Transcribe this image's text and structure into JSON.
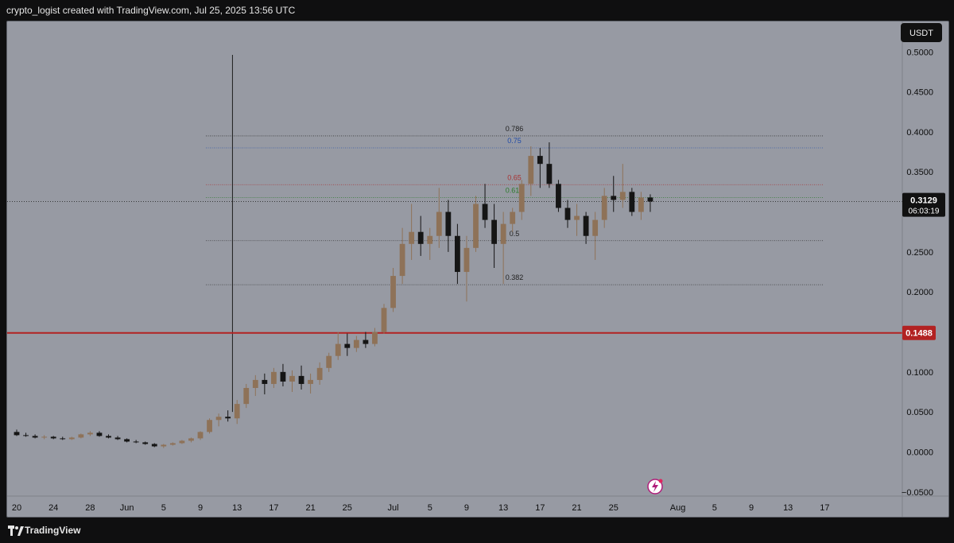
{
  "header": {
    "attribution": "crypto_logist created with TradingView.com, Jul 25, 2025 13:56 UTC"
  },
  "footer": {
    "brand": "TradingView"
  },
  "colors": {
    "background": "#979aa3",
    "bull": "#8e7258",
    "bear": "#151515",
    "support_line": "#b22222",
    "price_badge": "#111111",
    "fib_0_75": "#1f4aa8",
    "fib_0_65": "#a83232",
    "fib_0_618": "#2a7a2a"
  },
  "chart_data": {
    "type": "candlestick",
    "currency": "USDT",
    "ylim": [
      -0.05,
      0.5
    ],
    "y_ticks": [
      0.5,
      0.45,
      0.4,
      0.35,
      0.25,
      0.2,
      0.1,
      0.05,
      0.0,
      -0.05
    ],
    "y_tick_labels": [
      "0.5000",
      "0.4500",
      "0.4000",
      "0.3500",
      "0.2500",
      "0.2000",
      "0.1000",
      "0.0500",
      "0.0000",
      "−0.0500"
    ],
    "x_tick_labels": [
      "20",
      "24",
      "28",
      "Jun",
      "5",
      "9",
      "13",
      "17",
      "21",
      "25",
      "Jul",
      "5",
      "9",
      "13",
      "17",
      "21",
      "25",
      "Aug",
      "5",
      "9",
      "13",
      "17"
    ],
    "x_tick_day_index": [
      0,
      4,
      8,
      12,
      16,
      20,
      24,
      28,
      32,
      36,
      41,
      45,
      49,
      53,
      57,
      61,
      65,
      72,
      76,
      80,
      84,
      88
    ],
    "last_price": {
      "value": 0.3129,
      "label": "0.3129",
      "countdown": "06:03:19"
    },
    "support": {
      "value": 0.1488,
      "label": "0.1488"
    },
    "fib_levels": [
      {
        "ratio": "0.786",
        "price": 0.395
      },
      {
        "ratio": "0.75",
        "price": 0.38
      },
      {
        "ratio": "0.65",
        "price": 0.334
      },
      {
        "ratio": "0.618",
        "price": 0.318
      },
      {
        "ratio": "0.5",
        "price": 0.264
      },
      {
        "ratio": "0.382",
        "price": 0.209
      }
    ],
    "vertical_marker_day": 23.5,
    "candles": [
      [
        0.025,
        0.028,
        0.02,
        0.021
      ],
      [
        0.021,
        0.024,
        0.019,
        0.02
      ],
      [
        0.02,
        0.022,
        0.017,
        0.018
      ],
      [
        0.018,
        0.021,
        0.016,
        0.019
      ],
      [
        0.019,
        0.02,
        0.016,
        0.017
      ],
      [
        0.017,
        0.019,
        0.015,
        0.016
      ],
      [
        0.016,
        0.019,
        0.015,
        0.018
      ],
      [
        0.018,
        0.023,
        0.017,
        0.022
      ],
      [
        0.022,
        0.026,
        0.02,
        0.024
      ],
      [
        0.024,
        0.026,
        0.019,
        0.02
      ],
      [
        0.02,
        0.022,
        0.017,
        0.018
      ],
      [
        0.018,
        0.02,
        0.015,
        0.016
      ],
      [
        0.016,
        0.017,
        0.012,
        0.013
      ],
      [
        0.013,
        0.015,
        0.011,
        0.012
      ],
      [
        0.012,
        0.013,
        0.009,
        0.01
      ],
      [
        0.01,
        0.011,
        0.006,
        0.007
      ],
      [
        0.007,
        0.01,
        0.005,
        0.009
      ],
      [
        0.009,
        0.012,
        0.008,
        0.011
      ],
      [
        0.011,
        0.015,
        0.01,
        0.014
      ],
      [
        0.014,
        0.018,
        0.012,
        0.017
      ],
      [
        0.017,
        0.026,
        0.015,
        0.025
      ],
      [
        0.025,
        0.042,
        0.023,
        0.04
      ],
      [
        0.04,
        0.048,
        0.032,
        0.044
      ],
      [
        0.044,
        0.052,
        0.038,
        0.042
      ],
      [
        0.042,
        0.065,
        0.035,
        0.06
      ],
      [
        0.06,
        0.085,
        0.055,
        0.08
      ],
      [
        0.08,
        0.096,
        0.07,
        0.09
      ],
      [
        0.09,
        0.098,
        0.072,
        0.085
      ],
      [
        0.085,
        0.105,
        0.08,
        0.1
      ],
      [
        0.1,
        0.11,
        0.082,
        0.088
      ],
      [
        0.088,
        0.102,
        0.075,
        0.095
      ],
      [
        0.095,
        0.108,
        0.078,
        0.085
      ],
      [
        0.085,
        0.098,
        0.073,
        0.09
      ],
      [
        0.09,
        0.112,
        0.084,
        0.105
      ],
      [
        0.105,
        0.124,
        0.1,
        0.12
      ],
      [
        0.12,
        0.15,
        0.115,
        0.135
      ],
      [
        0.135,
        0.148,
        0.12,
        0.13
      ],
      [
        0.13,
        0.145,
        0.125,
        0.14
      ],
      [
        0.14,
        0.15,
        0.13,
        0.135
      ],
      [
        0.135,
        0.155,
        0.132,
        0.15
      ],
      [
        0.15,
        0.185,
        0.148,
        0.18
      ],
      [
        0.18,
        0.23,
        0.175,
        0.22
      ],
      [
        0.22,
        0.28,
        0.21,
        0.26
      ],
      [
        0.26,
        0.31,
        0.24,
        0.275
      ],
      [
        0.275,
        0.295,
        0.245,
        0.26
      ],
      [
        0.26,
        0.28,
        0.24,
        0.27
      ],
      [
        0.27,
        0.33,
        0.255,
        0.3
      ],
      [
        0.3,
        0.315,
        0.25,
        0.27
      ],
      [
        0.27,
        0.285,
        0.21,
        0.225
      ],
      [
        0.225,
        0.27,
        0.188,
        0.255
      ],
      [
        0.255,
        0.32,
        0.25,
        0.31
      ],
      [
        0.31,
        0.335,
        0.28,
        0.29
      ],
      [
        0.29,
        0.31,
        0.23,
        0.26
      ],
      [
        0.26,
        0.3,
        0.21,
        0.285
      ],
      [
        0.285,
        0.305,
        0.275,
        0.3
      ],
      [
        0.3,
        0.34,
        0.29,
        0.335
      ],
      [
        0.335,
        0.382,
        0.32,
        0.37
      ],
      [
        0.37,
        0.38,
        0.33,
        0.36
      ],
      [
        0.36,
        0.387,
        0.33,
        0.335
      ],
      [
        0.335,
        0.34,
        0.3,
        0.305
      ],
      [
        0.305,
        0.315,
        0.28,
        0.29
      ],
      [
        0.29,
        0.31,
        0.27,
        0.295
      ],
      [
        0.295,
        0.3,
        0.26,
        0.27
      ],
      [
        0.27,
        0.3,
        0.24,
        0.29
      ],
      [
        0.29,
        0.33,
        0.28,
        0.32
      ],
      [
        0.32,
        0.345,
        0.3,
        0.315
      ],
      [
        0.315,
        0.36,
        0.305,
        0.325
      ],
      [
        0.325,
        0.33,
        0.295,
        0.3
      ],
      [
        0.3,
        0.325,
        0.29,
        0.318
      ],
      [
        0.318,
        0.322,
        0.3,
        0.313
      ]
    ]
  }
}
